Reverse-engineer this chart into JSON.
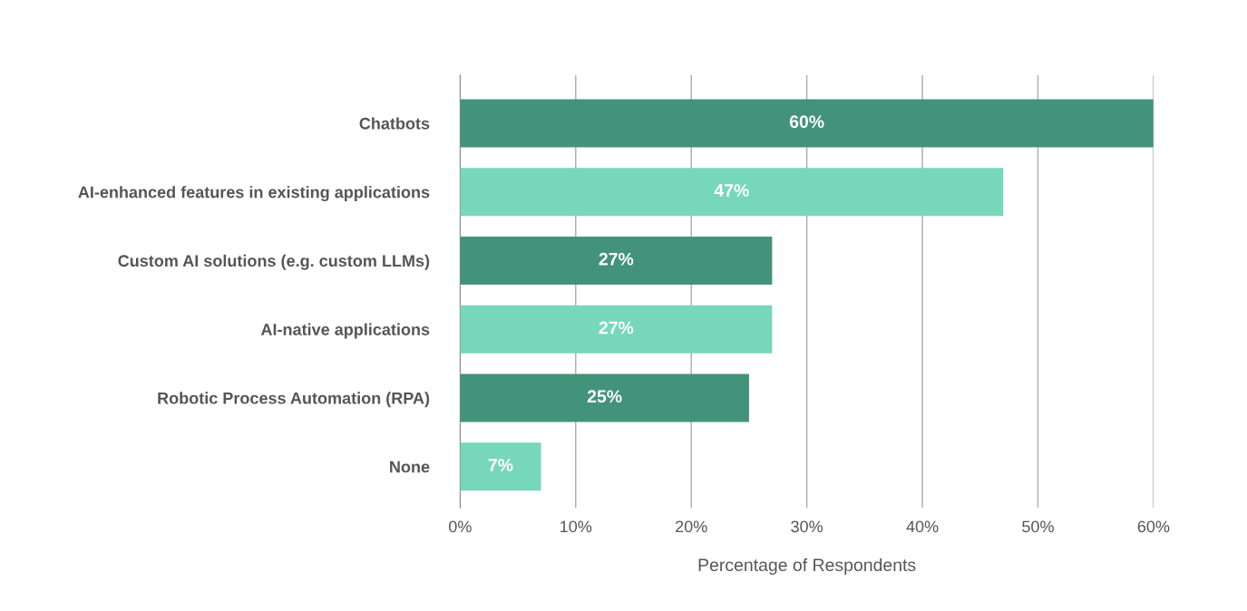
{
  "chart_data": {
    "type": "bar",
    "orientation": "horizontal",
    "xlabel": "Percentage of Respondents",
    "categories": [
      "Chatbots",
      "AI-enhanced features in existing applications",
      "Custom AI solutions (e.g. custom LLMs)",
      "AI-native applications",
      "Robotic Process Automation (RPA)",
      "None"
    ],
    "values": [
      60,
      47,
      27,
      27,
      25,
      7
    ],
    "colors": [
      "#42937a",
      "#77d7bb",
      "#42937a",
      "#77d7bb",
      "#42937a",
      "#77d7bb"
    ],
    "value_labels": [
      "60%",
      "47%",
      "27%",
      "27%",
      "25%",
      "7%"
    ],
    "xlim": [
      0,
      60
    ],
    "xticks": [
      {
        "value": 0,
        "label": "0%"
      },
      {
        "value": 10,
        "label": "10%"
      },
      {
        "value": 20,
        "label": "20%"
      },
      {
        "value": 30,
        "label": "30%"
      },
      {
        "value": 40,
        "label": "40%"
      },
      {
        "value": 50,
        "label": "50%"
      },
      {
        "value": 60,
        "label": "60%"
      }
    ],
    "grid": "x",
    "legend": false
  }
}
